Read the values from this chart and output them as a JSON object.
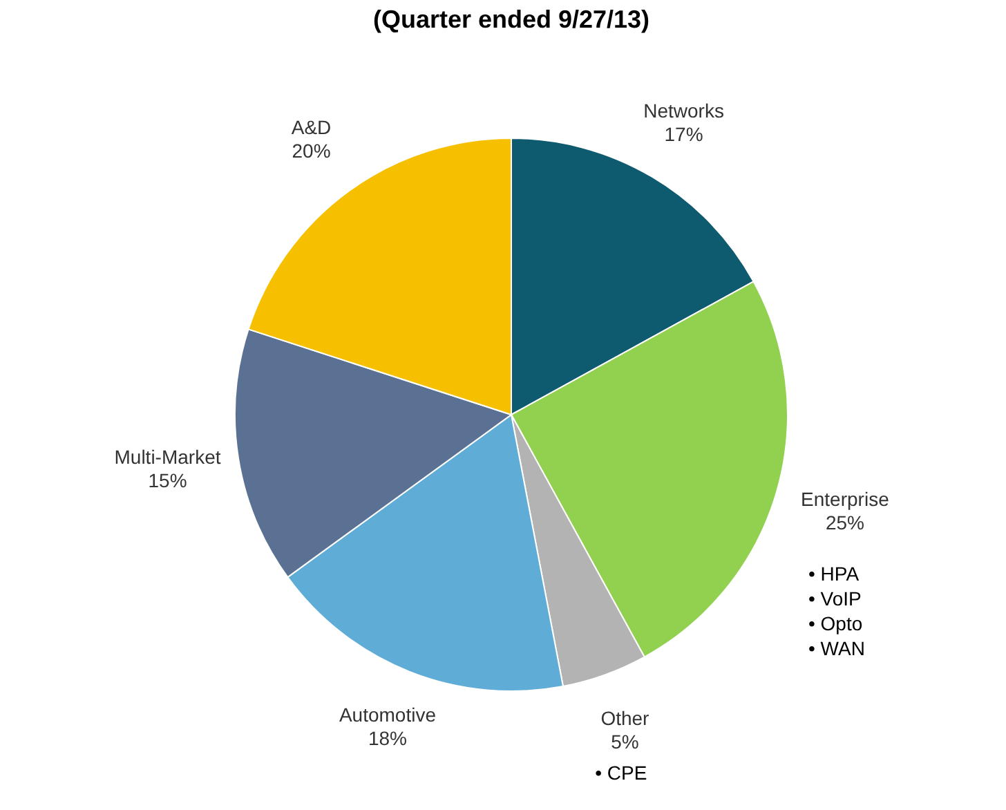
{
  "chart_data": {
    "type": "pie",
    "title": "(Quarter ended 9/27/13)",
    "categories": [
      "Networks",
      "Enterprise",
      "Other",
      "Automotive",
      "Multi-Market",
      "A&D"
    ],
    "values": [
      17,
      25,
      5,
      18,
      15,
      20
    ],
    "value_labels": [
      "17%",
      "25%",
      "5%",
      "18%",
      "15%",
      "20%"
    ],
    "colors": [
      "#0e5a6e",
      "#92d050",
      "#b3b3b3",
      "#5fadd6",
      "#5b7193",
      "#f6c000"
    ],
    "annotations": [
      "• HPA",
      "• VoIP",
      "• Opto",
      "• WAN",
      "• CPE"
    ]
  }
}
